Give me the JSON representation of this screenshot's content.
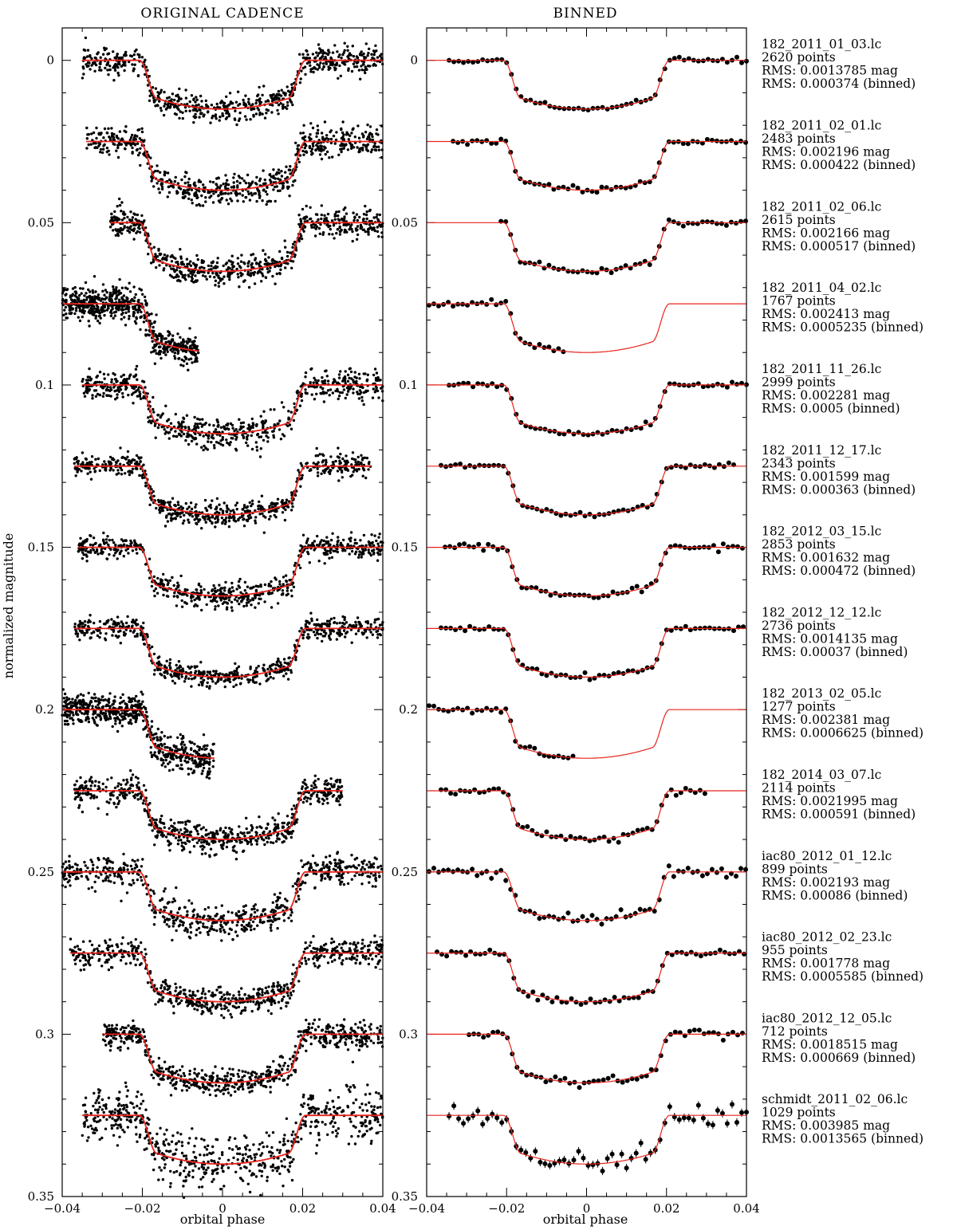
{
  "chart_data": [
    {
      "type": "scatter",
      "title": "ORIGINAL CADENCE",
      "xlabel": "orbital phase",
      "ylabel": "normalized magnitude",
      "xlim": [
        -0.04,
        0.04
      ],
      "ylim": [
        0.35,
        -0.01
      ],
      "y_inverted": true,
      "xticks": [
        "−0.04",
        "−0.02",
        "0",
        "0.02",
        "0.04"
      ],
      "yticks": [
        "0",
        "0.05",
        "0.1",
        "0.15",
        "0.2",
        "0.25",
        "0.3",
        "0.35"
      ],
      "grid": false,
      "marker": "small dots",
      "model_color": "#e8231c",
      "model": {
        "depth": 0.015,
        "t14": 0.0415,
        "t23": 0.033
      },
      "series": [
        {
          "offset": 0.0,
          "x_range": [
            -0.035,
            0.04
          ],
          "scatter": 0.002
        },
        {
          "offset": 0.025,
          "x_range": [
            -0.034,
            0.04
          ],
          "scatter": 0.0023
        },
        {
          "offset": 0.05,
          "x_range": [
            -0.028,
            0.04
          ],
          "scatter": 0.0022
        },
        {
          "offset": 0.075,
          "x_range": [
            -0.04,
            -0.006
          ],
          "scatter": 0.0025
        },
        {
          "offset": 0.1,
          "x_range": [
            -0.035,
            0.04
          ],
          "scatter": 0.0023
        },
        {
          "offset": 0.125,
          "x_range": [
            -0.037,
            0.037
          ],
          "scatter": 0.0018
        },
        {
          "offset": 0.15,
          "x_range": [
            -0.036,
            0.04
          ],
          "scatter": 0.0018
        },
        {
          "offset": 0.175,
          "x_range": [
            -0.037,
            0.04
          ],
          "scatter": 0.0016
        },
        {
          "offset": 0.2,
          "x_range": [
            -0.04,
            -0.002
          ],
          "scatter": 0.0024
        },
        {
          "offset": 0.225,
          "x_range": [
            -0.037,
            0.03
          ],
          "scatter": 0.0022
        },
        {
          "offset": 0.25,
          "x_range": [
            -0.04,
            0.04
          ],
          "scatter": 0.0025
        },
        {
          "offset": 0.275,
          "x_range": [
            -0.038,
            0.04
          ],
          "scatter": 0.0019
        },
        {
          "offset": 0.3,
          "x_range": [
            -0.03,
            0.04
          ],
          "scatter": 0.002
        },
        {
          "offset": 0.325,
          "x_range": [
            -0.035,
            0.04
          ],
          "scatter": 0.004
        }
      ]
    },
    {
      "type": "scatter",
      "title": "BINNED",
      "xlabel": "orbital phase",
      "xlim": [
        -0.04,
        0.04
      ],
      "ylim": [
        0.35,
        -0.01
      ],
      "y_inverted": true,
      "xticks": [
        "−0.04",
        "−0.02",
        "0",
        "0.02",
        "0.04"
      ],
      "yticks": [
        "0",
        "0.05",
        "0.1",
        "0.15",
        "0.2",
        "0.25",
        "0.3",
        "0.35"
      ],
      "grid": false,
      "marker": "filled circles with error bars",
      "model_color": "#e8231c",
      "series": [
        {
          "offset": 0.0,
          "x_range": [
            -0.035,
            0.04
          ],
          "scatter": 0.0004
        },
        {
          "offset": 0.025,
          "x_range": [
            -0.034,
            0.04
          ],
          "scatter": 0.0004
        },
        {
          "offset": 0.05,
          "x_range": [
            -0.022,
            0.04
          ],
          "scatter": 0.0005
        },
        {
          "offset": 0.075,
          "x_range": [
            -0.04,
            -0.005
          ],
          "scatter": 0.0005
        },
        {
          "offset": 0.1,
          "x_range": [
            -0.035,
            0.04
          ],
          "scatter": 0.0005
        },
        {
          "offset": 0.125,
          "x_range": [
            -0.037,
            0.037
          ],
          "scatter": 0.0004
        },
        {
          "offset": 0.15,
          "x_range": [
            -0.036,
            0.04
          ],
          "scatter": 0.0005
        },
        {
          "offset": 0.175,
          "x_range": [
            -0.037,
            0.04
          ],
          "scatter": 0.0004
        },
        {
          "offset": 0.2,
          "x_range": [
            -0.04,
            -0.003
          ],
          "scatter": 0.0007
        },
        {
          "offset": 0.225,
          "x_range": [
            -0.037,
            0.03
          ],
          "scatter": 0.0006
        },
        {
          "offset": 0.25,
          "x_range": [
            -0.04,
            0.04
          ],
          "scatter": 0.0009
        },
        {
          "offset": 0.275,
          "x_range": [
            -0.038,
            0.04
          ],
          "scatter": 0.0006
        },
        {
          "offset": 0.3,
          "x_range": [
            -0.03,
            0.04
          ],
          "scatter": 0.0007
        },
        {
          "offset": 0.325,
          "x_range": [
            -0.035,
            0.04
          ],
          "scatter": 0.0014
        }
      ]
    }
  ],
  "annotations": [
    {
      "file": "182_2011_01_03.lc",
      "points": "2620 points",
      "rms": "RMS: 0.0013785 mag",
      "rms_binned": "RMS: 0.000374 (binned)"
    },
    {
      "file": "182_2011_02_01.lc",
      "points": "2483 points",
      "rms": "RMS: 0.002196 mag",
      "rms_binned": "RMS: 0.000422 (binned)"
    },
    {
      "file": "182_2011_02_06.lc",
      "points": "2615 points",
      "rms": "RMS: 0.002166 mag",
      "rms_binned": "RMS: 0.000517 (binned)"
    },
    {
      "file": "182_2011_04_02.lc",
      "points": "1767 points",
      "rms": "RMS: 0.002413 mag",
      "rms_binned": "RMS: 0.0005235 (binned)"
    },
    {
      "file": "182_2011_11_26.lc",
      "points": "2999 points",
      "rms": "RMS: 0.002281 mag",
      "rms_binned": "RMS: 0.0005 (binned)"
    },
    {
      "file": "182_2011_12_17.lc",
      "points": "2343 points",
      "rms": "RMS: 0.001599 mag",
      "rms_binned": "RMS: 0.000363 (binned)"
    },
    {
      "file": "182_2012_03_15.lc",
      "points": "2853 points",
      "rms": "RMS: 0.001632 mag",
      "rms_binned": "RMS: 0.000472 (binned)"
    },
    {
      "file": "182_2012_12_12.lc",
      "points": "2736 points",
      "rms": "RMS: 0.0014135 mag",
      "rms_binned": "RMS: 0.00037 (binned)"
    },
    {
      "file": "182_2013_02_05.lc",
      "points": "1277 points",
      "rms": "RMS: 0.002381 mag",
      "rms_binned": "RMS: 0.0006625 (binned)"
    },
    {
      "file": "182_2014_03_07.lc",
      "points": "2114 points",
      "rms": "RMS: 0.0021995 mag",
      "rms_binned": "RMS: 0.000591 (binned)"
    },
    {
      "file": "iac80_2012_01_12.lc",
      "points": "899 points",
      "rms": "RMS: 0.002193 mag",
      "rms_binned": "RMS: 0.00086 (binned)"
    },
    {
      "file": "iac80_2012_02_23.lc",
      "points": "955 points",
      "rms": "RMS: 0.001778 mag",
      "rms_binned": "RMS: 0.0005585 (binned)"
    },
    {
      "file": "iac80_2012_12_05.lc",
      "points": "712 points",
      "rms": "RMS: 0.0018515 mag",
      "rms_binned": "RMS: 0.000669 (binned)"
    },
    {
      "file": "schmidt_2011_02_06.lc",
      "points": "1029 points",
      "rms": "RMS: 0.003985 mag",
      "rms_binned": "RMS: 0.0013565 (binned)"
    }
  ]
}
